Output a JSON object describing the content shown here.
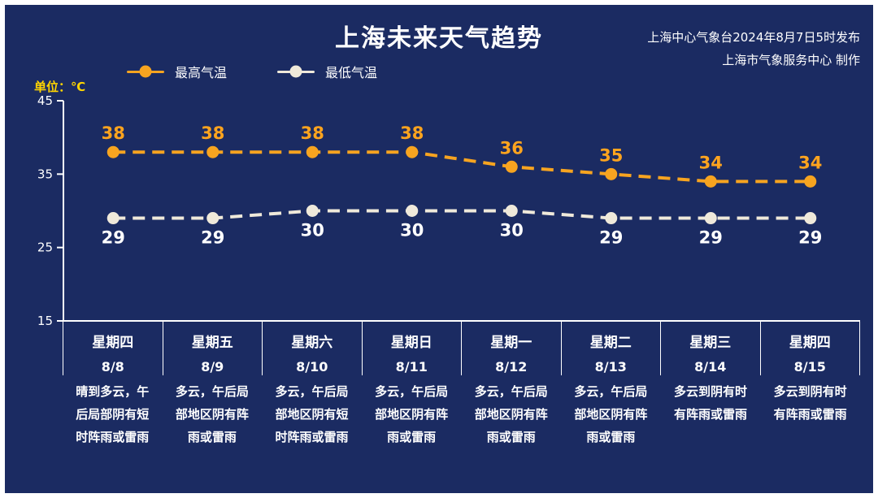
{
  "page": {
    "title": "上海未来天气趋势",
    "source_line1": "上海中心气象台2024年8月7日5时发布",
    "source_line2": "上海市气象服务中心 制作",
    "unit_label": "单位：℃"
  },
  "colors": {
    "background": "#1b2b62",
    "frame_border": "#ffffff",
    "max_temp": "#f7a420",
    "min_temp": "#efe9da",
    "unit_label": "#ffd400",
    "axis": "#ffffff",
    "text": "#ffffff"
  },
  "legend": [
    {
      "label": "最高气温",
      "color": "#f7a420"
    },
    {
      "label": "最低气温",
      "color": "#efe9da"
    }
  ],
  "chart_data": {
    "type": "line",
    "title": "上海未来天气趋势",
    "categories": [
      "8/8",
      "8/9",
      "8/10",
      "8/11",
      "8/12",
      "8/13",
      "8/14",
      "8/15"
    ],
    "day_names": [
      "星期四",
      "星期五",
      "星期六",
      "星期日",
      "星期一",
      "星期二",
      "星期三",
      "星期四"
    ],
    "series": [
      {
        "name": "最高气温",
        "color": "#f7a420",
        "label_color": "#ffa41e",
        "values": [
          38,
          38,
          38,
          38,
          36,
          35,
          34,
          34
        ]
      },
      {
        "name": "最低气温",
        "color": "#efe9da",
        "label_color": "#ffffff",
        "values": [
          29,
          29,
          30,
          30,
          30,
          29,
          29,
          29
        ]
      }
    ],
    "ylabel": "单位：℃",
    "ylim": [
      15,
      45
    ],
    "yticks": [
      45,
      35,
      25,
      15
    ],
    "grid": false,
    "line_style": "dashed",
    "legend_position": "top-left"
  },
  "days": [
    {
      "weekday": "星期四",
      "date": "8/8",
      "desc": "晴到多云，午后局部阴有短时阵雨或雷雨"
    },
    {
      "weekday": "星期五",
      "date": "8/9",
      "desc": "多云，午后局部地区阴有阵雨或雷雨"
    },
    {
      "weekday": "星期六",
      "date": "8/10",
      "desc": "多云，午后局部地区阴有短时阵雨或雷雨"
    },
    {
      "weekday": "星期日",
      "date": "8/11",
      "desc": "多云，午后局部地区阴有阵雨或雷雨"
    },
    {
      "weekday": "星期一",
      "date": "8/12",
      "desc": "多云，午后局部地区阴有阵雨或雷雨"
    },
    {
      "weekday": "星期二",
      "date": "8/13",
      "desc": "多云，午后局部地区阴有阵雨或雷雨"
    },
    {
      "weekday": "星期三",
      "date": "8/14",
      "desc": "多云到阴有时有阵雨或雷雨"
    },
    {
      "weekday": "星期四",
      "date": "8/15",
      "desc": "多云到阴有时有阵雨或雷雨"
    }
  ]
}
